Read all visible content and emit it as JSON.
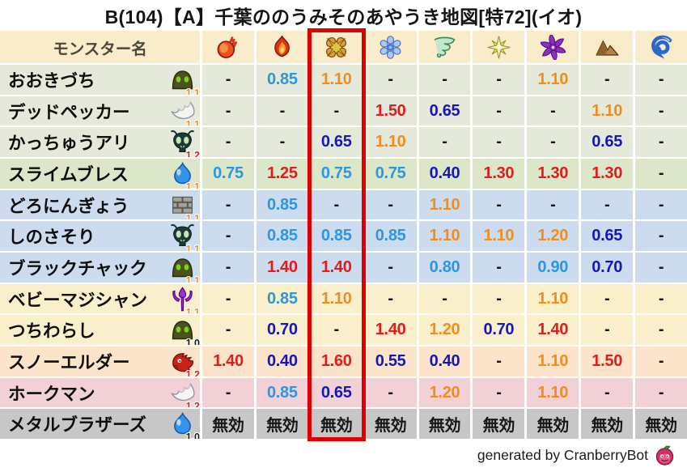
{
  "title": "B(104)【A】千葉ののうみそのあやうき地図[特72](イオ)",
  "credit": {
    "text": "generated by CranberryBot",
    "icon": "berry-slime-bot-icon"
  },
  "colors": {
    "highlight_box": "#dd0000",
    "value_red": "#e01c1c",
    "value_orange": "#f08d1e",
    "value_blue": "#2e95e1",
    "value_navy": "#1717b8",
    "text_dark": "#161616",
    "header_bg": "#f8ecca"
  },
  "table": {
    "name_header": "モンスター名",
    "highlighted_column_index": 2,
    "elements": [
      {
        "id": "fire",
        "icon": "fireball-icon"
      },
      {
        "id": "flame",
        "icon": "flame-icon"
      },
      {
        "id": "explosion",
        "icon": "explosion-burst-icon"
      },
      {
        "id": "ice",
        "icon": "snowflake-icon"
      },
      {
        "id": "wind",
        "icon": "tornado-icon"
      },
      {
        "id": "light",
        "icon": "sparkle-star-icon"
      },
      {
        "id": "dark",
        "icon": "purple-pinwheel-icon"
      },
      {
        "id": "earth",
        "icon": "mountain-icon"
      },
      {
        "id": "water",
        "icon": "wave-icon"
      }
    ],
    "rows": [
      {
        "name": "おおきづち",
        "icon": "dome",
        "level": "1.1",
        "bg": "#e4e9d9",
        "values": [
          "-",
          "0.85",
          "1.10",
          "-",
          "-",
          "-",
          "1.10",
          "-",
          "-"
        ]
      },
      {
        "name": "デッドペッカー",
        "icon": "wing",
        "level": "1.1",
        "bg": "#e4e9d9",
        "values": [
          "-",
          "-",
          "-",
          "1.50",
          "0.65",
          "-",
          "-",
          "1.10",
          "-"
        ]
      },
      {
        "name": "かっちゅうアリ",
        "icon": "ant",
        "level": "1.2",
        "bg": "#e4e9d9",
        "values": [
          "-",
          "-",
          "0.65",
          "1.10",
          "-",
          "-",
          "-",
          "0.65",
          "-"
        ]
      },
      {
        "name": "スライムブレス",
        "icon": "slime",
        "level": "1.1",
        "bg": "#dce7ca",
        "values": [
          "0.75",
          "1.25",
          "0.75",
          "0.75",
          "0.40",
          "1.30",
          "1.30",
          "1.30",
          "-"
        ]
      },
      {
        "name": "どろにんぎょう",
        "icon": "brick",
        "level": "1.1",
        "bg": "#ccdcee",
        "values": [
          "-",
          "0.85",
          "-",
          "-",
          "1.10",
          "-",
          "-",
          "-",
          "-"
        ]
      },
      {
        "name": "しのさそり",
        "icon": "ant",
        "level": "1.1",
        "bg": "#ccdcee",
        "values": [
          "-",
          "0.85",
          "0.85",
          "0.85",
          "1.10",
          "1.10",
          "1.20",
          "0.65",
          "-"
        ]
      },
      {
        "name": "ブラックチャック",
        "icon": "dome",
        "level": "1.1",
        "bg": "#ccdcee",
        "values": [
          "-",
          "1.40",
          "1.40",
          "-",
          "0.80",
          "-",
          "0.90",
          "0.70",
          "-"
        ]
      },
      {
        "name": "ベビーマジシャン",
        "icon": "trident",
        "level": "1.1",
        "bg": "#f9efca",
        "values": [
          "-",
          "0.85",
          "1.10",
          "-",
          "-",
          "-",
          "1.10",
          "-",
          "-"
        ]
      },
      {
        "name": "つちわらし",
        "icon": "dome",
        "level": "1.0",
        "bg": "#f9efca",
        "values": [
          "-",
          "0.70",
          "-",
          "1.40",
          "1.20",
          "0.70",
          "1.40",
          "-",
          "-"
        ]
      },
      {
        "name": "スノーエルダー",
        "icon": "dragon",
        "level": "1.2",
        "bg": "#fbe4ca",
        "values": [
          "1.40",
          "0.40",
          "1.60",
          "0.55",
          "0.40",
          "-",
          "1.10",
          "1.50",
          "-"
        ]
      },
      {
        "name": "ホークマン",
        "icon": "wing",
        "level": "1.2",
        "bg": "#f1d0d6",
        "values": [
          "-",
          "0.85",
          "0.65",
          "-",
          "1.20",
          "-",
          "1.10",
          "-",
          "-"
        ]
      },
      {
        "name": "メタルブラザーズ",
        "icon": "slime",
        "level": "1.0",
        "bg": "#c7c7c7",
        "values": [
          "無効",
          "無効",
          "無効",
          "無効",
          "無効",
          "無効",
          "無効",
          "無効",
          "無効"
        ]
      }
    ]
  }
}
